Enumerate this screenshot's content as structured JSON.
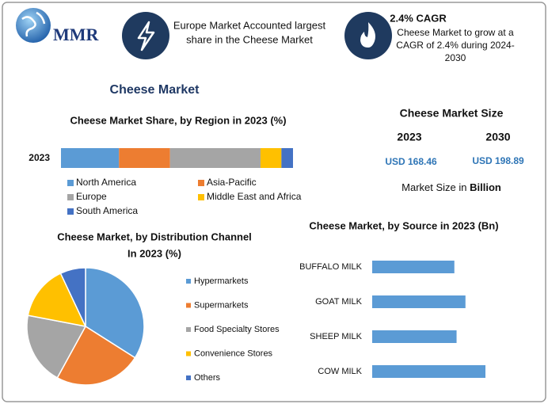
{
  "header": {
    "logo": "MMR",
    "europe": [
      "Europe Market Accounted largest",
      "share in the Cheese Market"
    ],
    "cagr_title": "2.4% CAGR",
    "cagr_text": [
      "Cheese Market to grow at a",
      "CAGR of 2.4% during 2024-",
      "2030"
    ]
  },
  "title": "Cheese Market",
  "market_size": {
    "title": "Cheese Market Size",
    "years": [
      "2023",
      "2030"
    ],
    "values": [
      "USD 168.46",
      "USD 198.89"
    ],
    "note": "Market Size in",
    "note_bold": "Billion"
  },
  "chart_data": [
    {
      "type": "stacked-bar",
      "title": "Cheese Market Share, by Region in 2023 (%)",
      "categories": [
        "2023"
      ],
      "series": [
        {
          "name": "North America",
          "color": "#5b9bd5",
          "values": [
            25
          ]
        },
        {
          "name": "Asia-Pacific",
          "color": "#ed7d31",
          "values": [
            22
          ]
        },
        {
          "name": "Europe",
          "color": "#a5a5a5",
          "values": [
            39
          ]
        },
        {
          "name": "Middle East and Africa",
          "color": "#ffc000",
          "values": [
            9
          ]
        },
        {
          "name": "South America",
          "color": "#4472c4",
          "values": [
            5
          ]
        }
      ]
    },
    {
      "type": "pie",
      "title": [
        "Cheese Market, by Distribution Channel",
        "In 2023 (%)"
      ],
      "labels": [
        "Hypermarkets",
        "Supermarkets",
        "Food Specialty Stores",
        "Convenience Stores",
        "Others"
      ],
      "values": [
        34,
        24,
        20,
        15,
        7
      ],
      "colors": [
        "#5b9bd5",
        "#ed7d31",
        "#a5a5a5",
        "#ffc000",
        "#4472c4"
      ]
    },
    {
      "type": "hbar",
      "title": "Cheese Market, by Source in 2023 (Bn)",
      "categories": [
        "BUFFALO MILK",
        "GOAT MILK",
        "SHEEP MILK",
        "COW MILK"
      ],
      "values": [
        37,
        42,
        38,
        51
      ],
      "color": "#5b9bd5"
    }
  ]
}
